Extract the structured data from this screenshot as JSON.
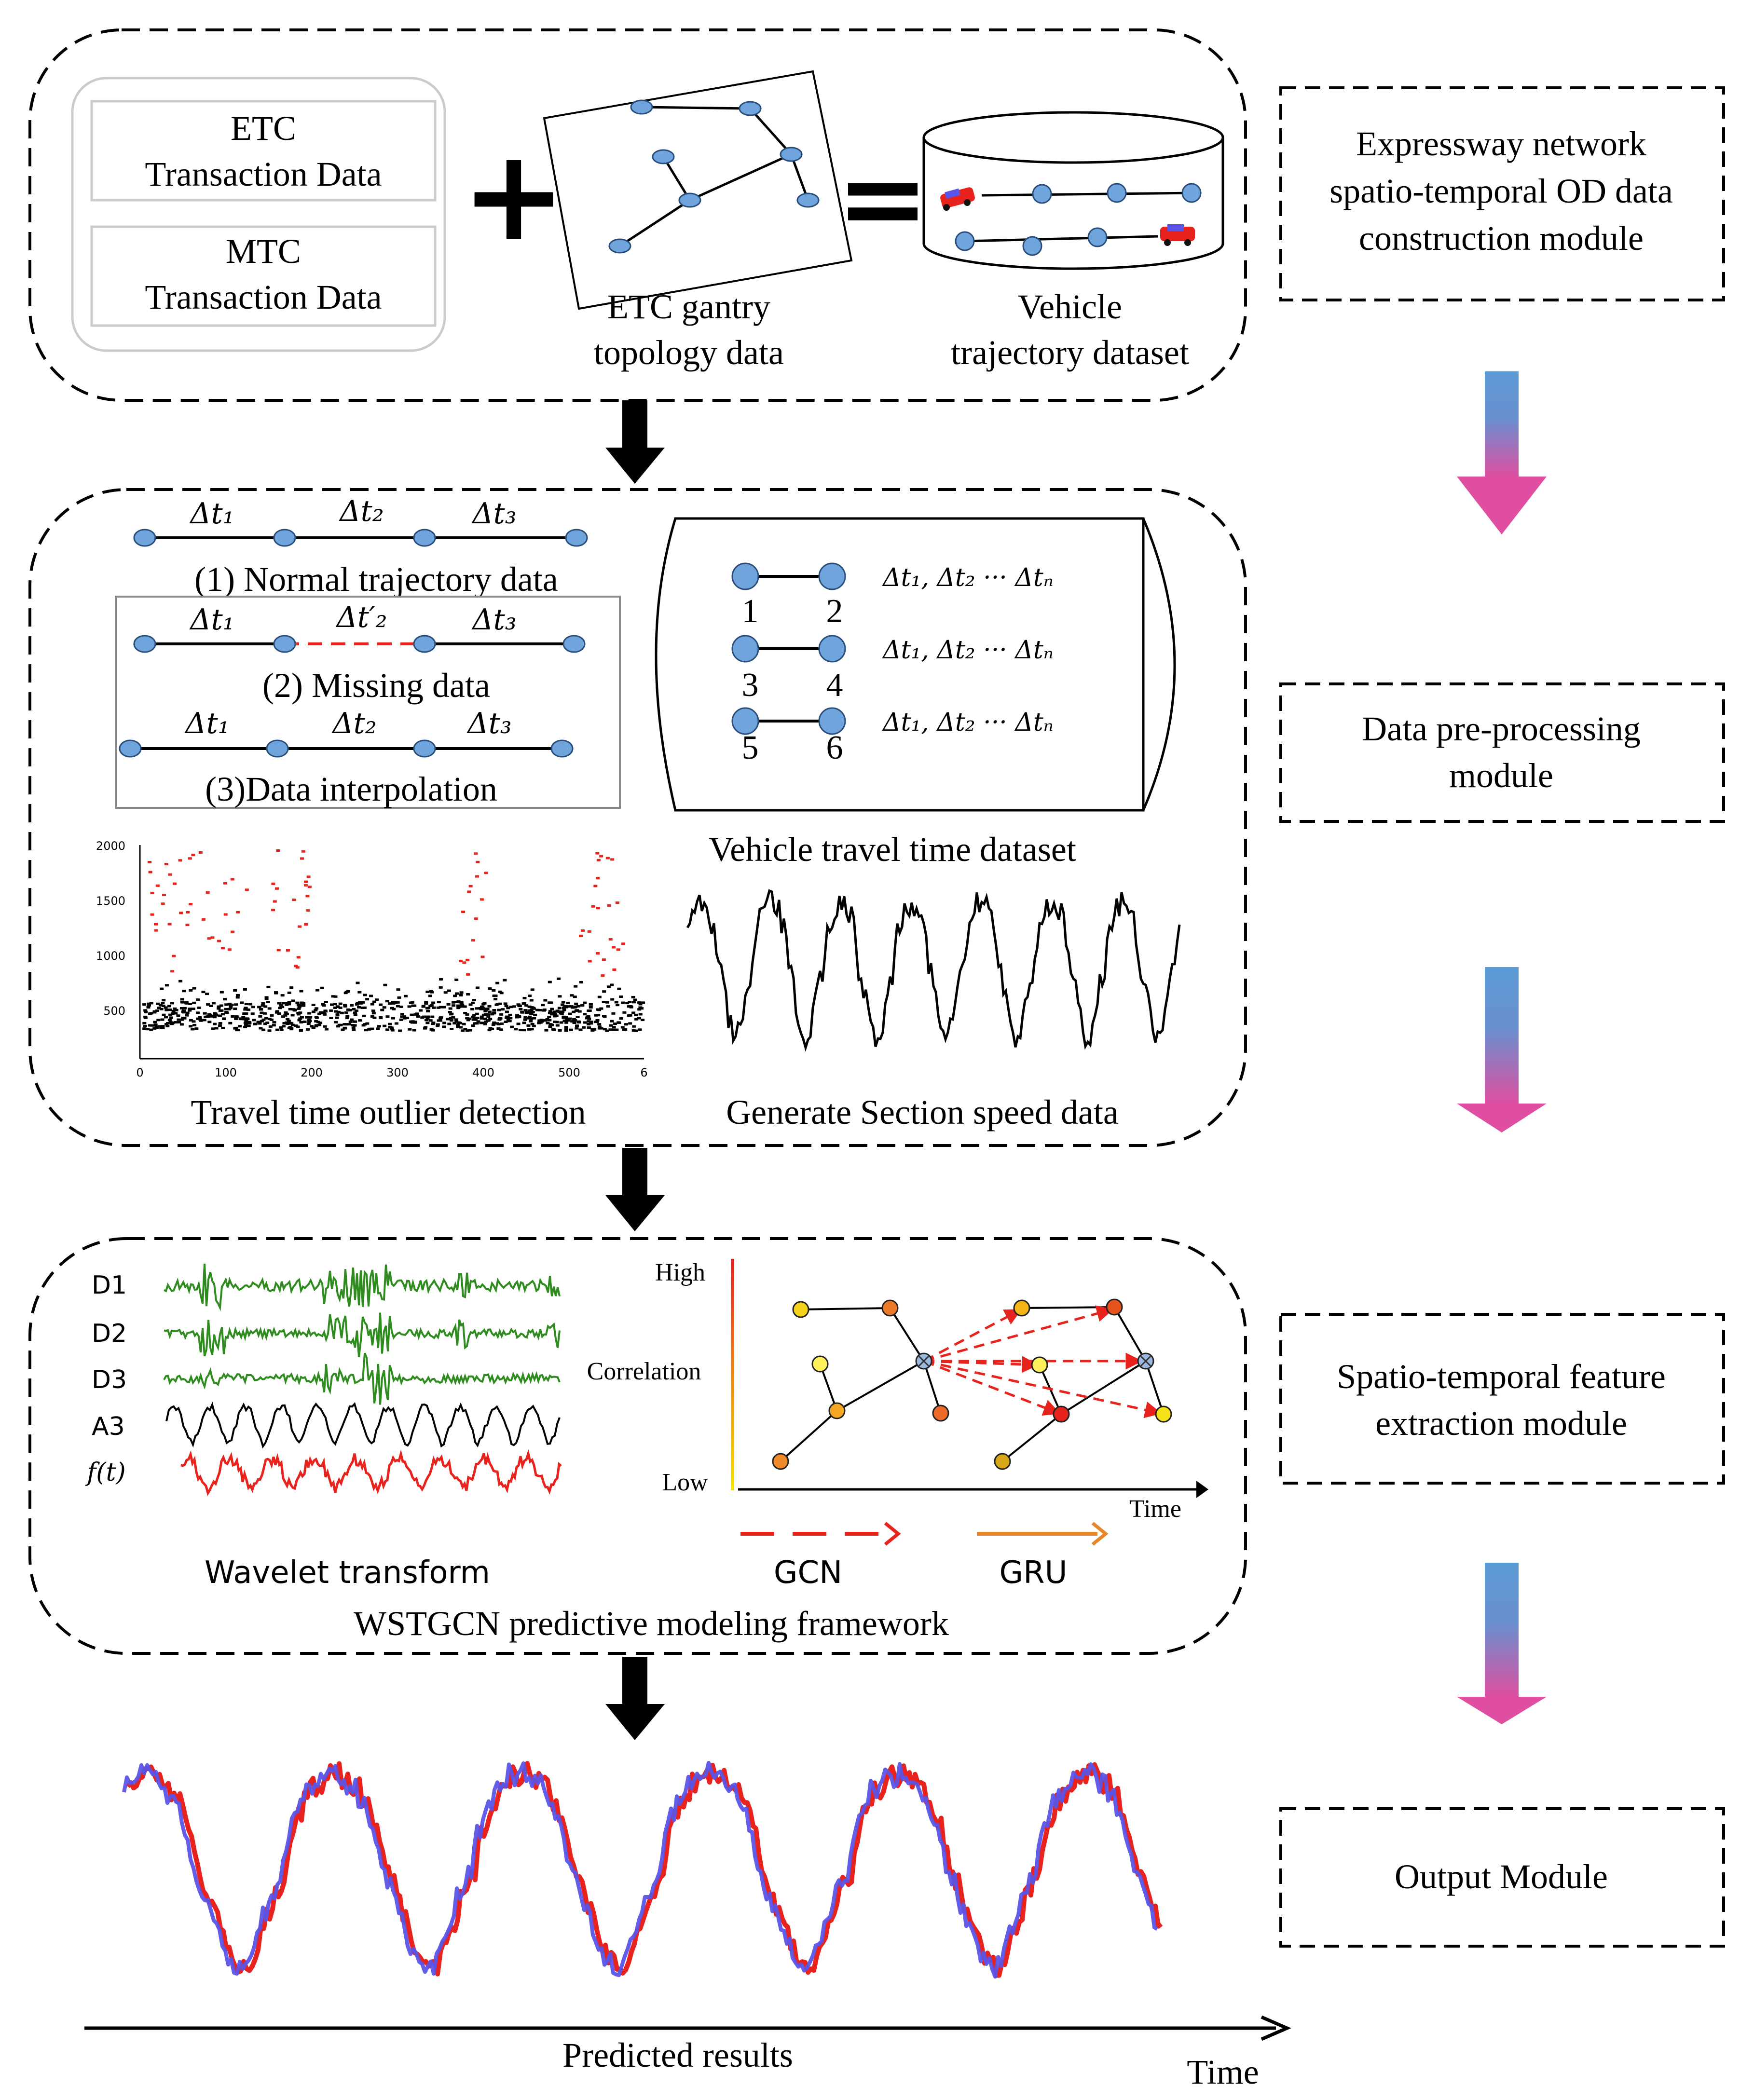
{
  "modules": {
    "od": "Expressway network spatio-temporal OD data construction module",
    "od_lines": [
      "Expressway network",
      "spatio-temporal OD data",
      "construction module"
    ],
    "pre": "Data pre-processing module",
    "pre_lines": [
      "Data pre-processing",
      "module"
    ],
    "feat": "Spatio-temporal feature extraction module",
    "feat_lines": [
      "Spatio-temporal feature",
      "extraction module"
    ],
    "out": "Output Module"
  },
  "stage1": {
    "etc": "ETC Transaction Data",
    "etc_lines": [
      "ETC",
      "Transaction Data"
    ],
    "mtc": "MTC Transaction Data",
    "mtc_lines": [
      "MTC",
      "Transaction Data"
    ],
    "plus": "+",
    "equals": "=",
    "gantry": "ETC gantry topology data",
    "gantry_lines": [
      "ETC gantry",
      "topology data"
    ],
    "vehicle": "Vehicle trajectory dataset",
    "vehicle_lines": [
      "Vehicle",
      "trajectory dataset"
    ]
  },
  "stage2": {
    "normal": "(1) Normal trajectory data",
    "missing": "(2) Missing data",
    "interp": "(3)Data interpolation",
    "dt1": "Δt₁",
    "dt2": "Δt₂",
    "dt3": "Δt₃",
    "dt2p": "Δt′₂",
    "dtn": "Δt₁, Δt₂ ··· Δtₙ",
    "pair_labels": [
      "1",
      "2",
      "3",
      "4",
      "5",
      "6"
    ],
    "travel_ds": "Vehicle travel time dataset",
    "outlier": "Travel time outlier detection",
    "section": "Generate Section speed data",
    "scatter_yticks": [
      "2000",
      "1500",
      "1000",
      "500"
    ],
    "scatter_xticks": [
      "0",
      "100",
      "200",
      "300",
      "400",
      "500",
      "6"
    ]
  },
  "stage3": {
    "d1": "D1",
    "d2": "D2",
    "d3": "D3",
    "a3": "A3",
    "ft": "f(t)",
    "wavelet": "Wavelet transform",
    "high": "High",
    "corr": "Correlation",
    "low": "Low",
    "time": "Time",
    "gcn": "GCN",
    "gru": "GRU",
    "framework": "WSTGCN predictive modeling framework"
  },
  "stage4": {
    "predicted": "Predicted results",
    "time": "Time"
  },
  "colors": {
    "node": "#6fa5dc",
    "green": "#2e8b1e",
    "red": "#e8221c",
    "blue": "#5a55e8",
    "orange": "#e8862a",
    "arrow_top": "#5b9bd5",
    "arrow_bot": "#d9509e"
  }
}
